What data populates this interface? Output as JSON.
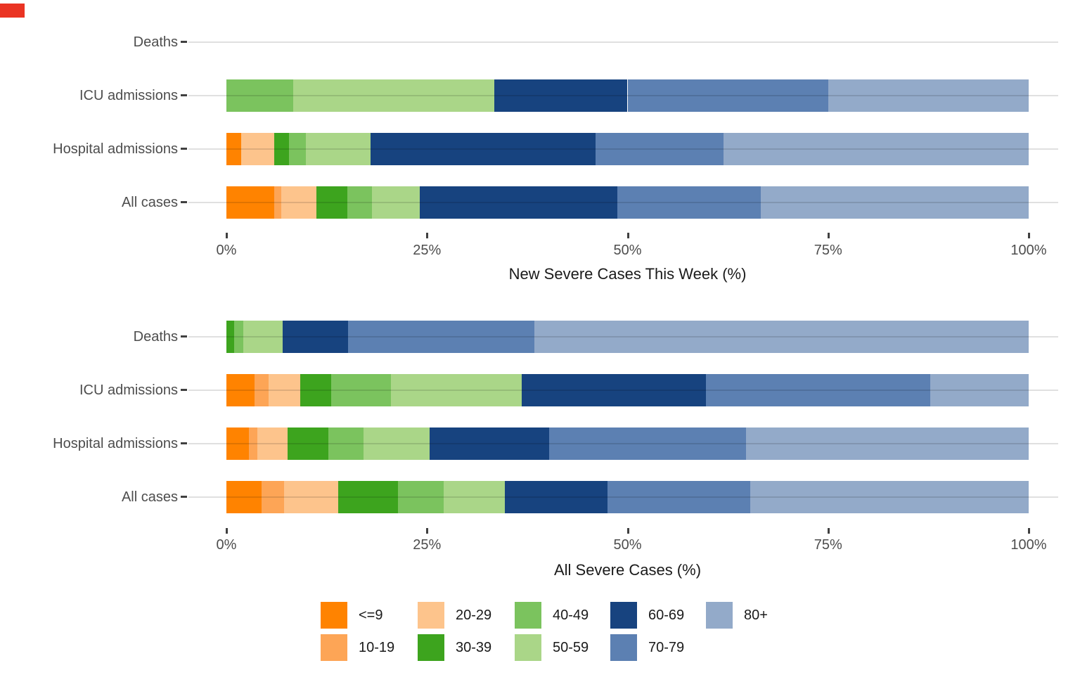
{
  "decorations": {
    "recording_marker_color": "#EA3423"
  },
  "age_groups": [
    "<=9",
    "10-19",
    "20-29",
    "30-39",
    "40-49",
    "50-59",
    "60-69",
    "70-79",
    "80+"
  ],
  "colors": {
    "<=9": "#FF8300",
    "10-19": "#FDA556",
    "20-29": "#FDC48C",
    "30-39": "#3DA41E",
    "40-49": "#7BC35E",
    "50-59": "#AAD688",
    "60-69": "#17437F",
    "70-79": "#5C80B2",
    "80+": "#93AAC9"
  },
  "chart_data": [
    {
      "type": "bar",
      "orientation": "horizontal-stacked",
      "title": "New Severe Cases This Week (%)",
      "xlabel": "New Severe Cases This Week (%)",
      "ylabel": "",
      "xlim": [
        0,
        100
      ],
      "x_tick_labels": [
        "0%",
        "25%",
        "50%",
        "75%",
        "100%"
      ],
      "x_tick_values": [
        0,
        25,
        50,
        75,
        100
      ],
      "grid": "horizontal-row-lines",
      "categories": [
        "<=9",
        "10-19",
        "20-29",
        "30-39",
        "40-49",
        "50-59",
        "60-69",
        "70-79",
        "80+"
      ],
      "rows": [
        {
          "label": "Deaths",
          "values": [
            0,
            0,
            0,
            0,
            0,
            0,
            0,
            0,
            0
          ]
        },
        {
          "label": "ICU admissions",
          "values": [
            0,
            0,
            0,
            0,
            8.3,
            25.1,
            16.6,
            25.0,
            25.0
          ]
        },
        {
          "label": "Hospital admissions",
          "values": [
            1.8,
            0,
            4.2,
            1.8,
            2.1,
            8.1,
            28.0,
            16.0,
            38.0
          ]
        },
        {
          "label": "All cases",
          "values": [
            6.0,
            0.8,
            4.4,
            3.9,
            3.0,
            6.0,
            24.6,
            17.9,
            33.4
          ]
        }
      ]
    },
    {
      "type": "bar",
      "orientation": "horizontal-stacked",
      "title": "All Severe Cases (%)",
      "xlabel": "All Severe Cases (%)",
      "ylabel": "",
      "xlim": [
        0,
        100
      ],
      "x_tick_labels": [
        "0%",
        "25%",
        "50%",
        "75%",
        "100%"
      ],
      "x_tick_values": [
        0,
        25,
        50,
        75,
        100
      ],
      "grid": "horizontal-row-lines",
      "categories": [
        "<=9",
        "10-19",
        "20-29",
        "30-39",
        "40-49",
        "50-59",
        "60-69",
        "70-79",
        "80+"
      ],
      "rows": [
        {
          "label": "Deaths",
          "values": [
            0,
            0,
            0,
            1.0,
            1.1,
            4.9,
            8.2,
            23.2,
            61.6
          ]
        },
        {
          "label": "ICU admissions",
          "values": [
            3.5,
            1.8,
            3.9,
            3.9,
            7.4,
            16.3,
            23.0,
            27.9,
            12.3
          ]
        },
        {
          "label": "Hospital admissions",
          "values": [
            2.8,
            1.1,
            3.7,
            5.1,
            4.4,
            8.2,
            14.9,
            24.6,
            35.2
          ]
        },
        {
          "label": "All cases",
          "values": [
            4.4,
            2.8,
            6.7,
            7.5,
            5.7,
            7.6,
            12.8,
            17.8,
            34.7
          ]
        }
      ]
    }
  ],
  "legend": {
    "position": "bottom",
    "columns": [
      [
        "<=9",
        "10-19"
      ],
      [
        "20-29",
        "30-39"
      ],
      [
        "40-49",
        "50-59"
      ],
      [
        "60-69",
        "70-79"
      ],
      [
        "80+"
      ]
    ]
  }
}
